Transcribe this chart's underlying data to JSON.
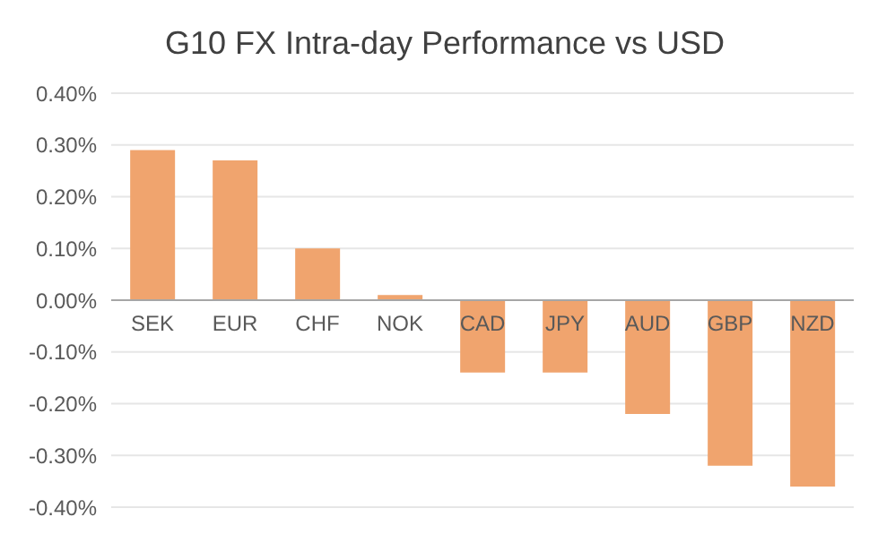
{
  "chart_data": {
    "type": "bar",
    "title": "G10 FX Intra-day Performance vs USD",
    "categories": [
      "SEK",
      "EUR",
      "CHF",
      "NOK",
      "CAD",
      "JPY",
      "AUD",
      "GBP",
      "NZD"
    ],
    "values": [
      0.29,
      0.27,
      0.1,
      0.01,
      -0.14,
      -0.14,
      -0.22,
      -0.32,
      -0.36
    ],
    "color": "#f0a46e",
    "ylim": [
      -0.4,
      0.4
    ],
    "yticks": [
      {
        "value": -0.4,
        "label": "-0.40%"
      },
      {
        "value": -0.3,
        "label": "-0.30%"
      },
      {
        "value": -0.2,
        "label": "-0.20%"
      },
      {
        "value": -0.1,
        "label": "-0.10%"
      },
      {
        "value": 0,
        "label": "0.00%"
      },
      {
        "value": 0.1,
        "label": "0.10%"
      },
      {
        "value": 0.2,
        "label": "0.20%"
      },
      {
        "value": 0.3,
        "label": "0.30%"
      },
      {
        "value": 0.4,
        "label": "0.40%"
      }
    ],
    "grid": "y"
  }
}
